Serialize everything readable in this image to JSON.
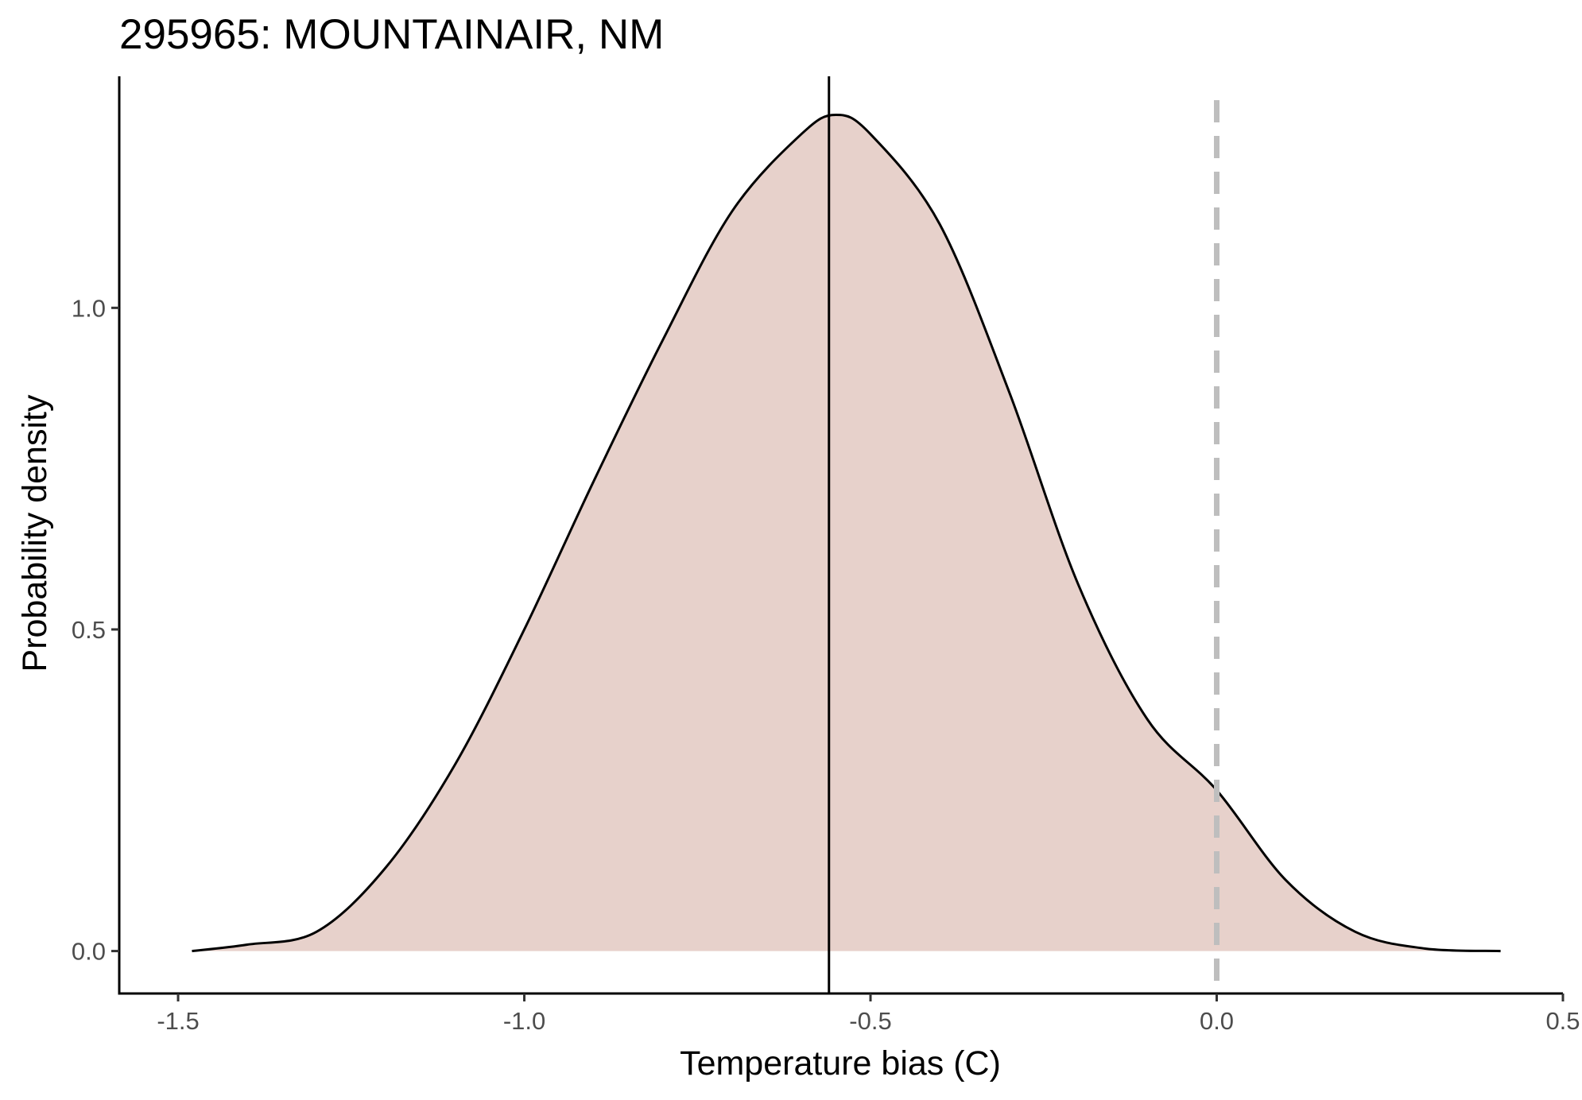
{
  "chart_data": {
    "type": "area",
    "title": "295965: MOUNTAINAIR, NM",
    "xlabel": "Temperature bias (C)",
    "ylabel": "Probability density",
    "xlim": [
      -1.585,
      0.5
    ],
    "ylim": [
      -0.066,
      1.36
    ],
    "x_ticks": [
      "-1.5",
      "-1.0",
      "-0.5",
      "0.0",
      "0.5"
    ],
    "y_ticks": [
      "0.0",
      "0.5",
      "1.0"
    ],
    "grid": false,
    "series": [
      {
        "x": [
          -1.48,
          -1.4,
          -1.3,
          -1.2,
          -1.1,
          -1.0,
          -0.9,
          -0.8,
          -0.7,
          -0.6,
          -0.55,
          -0.5,
          -0.4,
          -0.3,
          -0.2,
          -0.1,
          0.0,
          0.1,
          0.2,
          0.3,
          0.41
        ],
        "values": [
          0.0,
          0.01,
          0.03,
          0.13,
          0.29,
          0.5,
          0.73,
          0.95,
          1.15,
          1.27,
          1.3,
          1.27,
          1.13,
          0.87,
          0.57,
          0.36,
          0.25,
          0.11,
          0.03,
          0.004,
          0.0
        ]
      }
    ],
    "fill_color": "#e7d1cb",
    "line_color": "#000000",
    "annotations": {
      "solid_vline_x": -0.56,
      "dashed_vline_x": 0.0,
      "dashed_vline_color": "#bebebe"
    }
  }
}
